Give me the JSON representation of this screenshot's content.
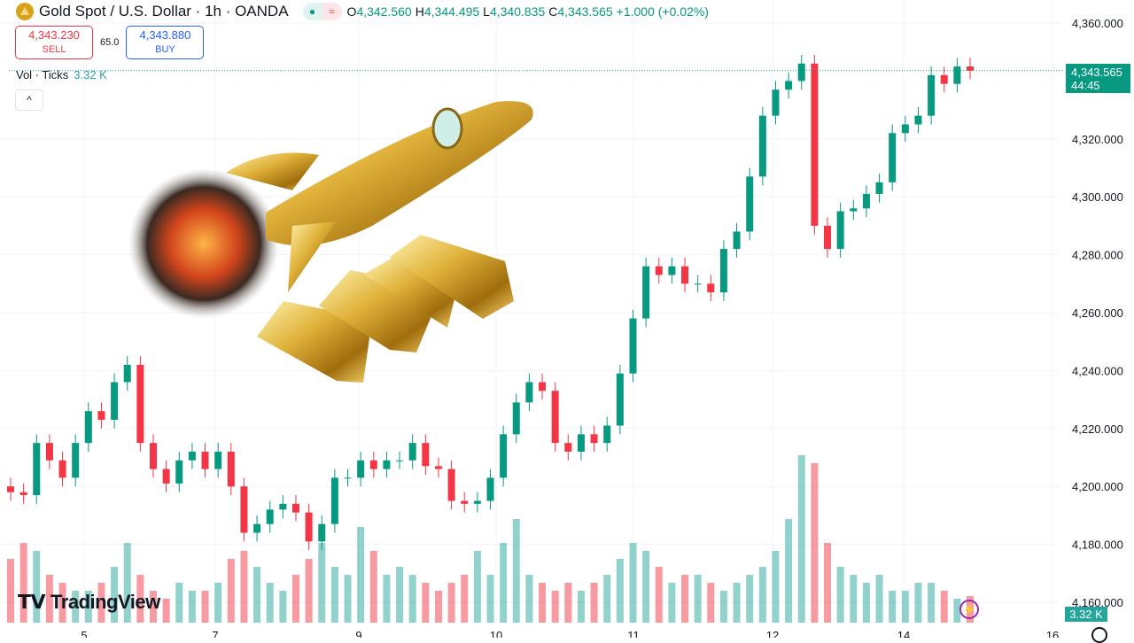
{
  "header": {
    "title": "Gold Spot / U.S. Dollar · 1h · OANDA",
    "open_label": "O",
    "open": "4,342.560",
    "high_label": "H",
    "high": "4,344.495",
    "low_label": "L",
    "low": "4,340.835",
    "close_label": "C",
    "close": "4,343.565",
    "change": "+1.000 (+0.02%)",
    "status_dot_icon": "market-open-dot-icon",
    "wave_icon": "approx-icon"
  },
  "trade": {
    "sell_price": "4,343.230",
    "sell_label": "SELL",
    "spread": "65.0",
    "buy_price": "4,343.880",
    "buy_label": "BUY"
  },
  "volume_legend": {
    "label": "Vol · Ticks",
    "value": "3.32 K"
  },
  "collapse_label": "^",
  "brand": "TradingView",
  "price_label": {
    "price": "4,343.565",
    "countdown": "44:45"
  },
  "volume_label": "3.32 K",
  "colors": {
    "up": "#089981",
    "down": "#f23645",
    "vol_up": "#26a69a80",
    "vol_down": "#f2364580",
    "price_line": "#089981"
  },
  "chart_data": {
    "type": "candlestick",
    "title": "Gold Spot / U.S. Dollar · 1h · OANDA",
    "ylim": [
      4155,
      4365
    ],
    "y_ticks": [
      "4,360.000",
      "4,320.000",
      "4,300.000",
      "4,280.000",
      "4,260.000",
      "4,240.000",
      "4,220.000",
      "4,200.000",
      "4,180.000",
      "4,160.000"
    ],
    "y_tick_values": [
      4360,
      4320,
      4300,
      4280,
      4260,
      4240,
      4220,
      4200,
      4180,
      4160
    ],
    "x_ticks": [
      "5",
      "7",
      "9",
      "10",
      "11",
      "12",
      "14",
      "16"
    ],
    "first_open": 4200,
    "close": [
      4198,
      4197,
      4215,
      4209,
      4203,
      4215,
      4226,
      4223,
      4236,
      4242,
      4215,
      4206,
      4201,
      4209,
      4212,
      4206,
      4212,
      4200,
      4184,
      4187,
      4192,
      4194,
      4191,
      4181,
      4187,
      4203,
      4203,
      4209,
      4206,
      4209,
      4209,
      4215,
      4207,
      4206,
      4195,
      4194,
      4195,
      4203,
      4218,
      4229,
      4236,
      4233,
      4215,
      4212,
      4218,
      4215,
      4221,
      4239,
      4258,
      4276,
      4273,
      4276,
      4270,
      4270,
      4267,
      4282,
      4288,
      4307,
      4328,
      4337,
      4340,
      4346,
      4290,
      4282,
      4295,
      4296,
      4301,
      4305,
      4322,
      4325,
      4328,
      4342,
      4339,
      4345,
      4343.565
    ],
    "volume_k": [
      8,
      10,
      9,
      6,
      5,
      4,
      4,
      5,
      7,
      10,
      6,
      4,
      3,
      5,
      4,
      4,
      5,
      8,
      9,
      7,
      5,
      4,
      6,
      8,
      10,
      7,
      6,
      12,
      9,
      6,
      7,
      6,
      5,
      4,
      5,
      6,
      9,
      6,
      10,
      13,
      6,
      5,
      4,
      5,
      4,
      5,
      6,
      8,
      10,
      9,
      7,
      5,
      6,
      6,
      5,
      4,
      5,
      6,
      7,
      9,
      13,
      21,
      20,
      10,
      7,
      6,
      5,
      6,
      4,
      4,
      5,
      5,
      4,
      3,
      3.32
    ],
    "current_price": 4343.565,
    "grid": true
  }
}
